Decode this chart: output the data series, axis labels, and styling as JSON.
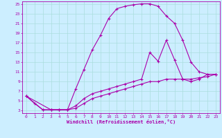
{
  "xlabel": "Windchill (Refroidissement éolien,°C)",
  "bg_color": "#cceeff",
  "line_color": "#aa00aa",
  "grid_color": "#aadddd",
  "xlim": [
    -0.5,
    23.5
  ],
  "ylim": [
    2.5,
    25.5
  ],
  "xticks": [
    0,
    1,
    2,
    3,
    4,
    5,
    6,
    7,
    8,
    9,
    10,
    11,
    12,
    13,
    14,
    15,
    16,
    17,
    18,
    19,
    20,
    21,
    22,
    23
  ],
  "yticks": [
    3,
    5,
    7,
    9,
    11,
    13,
    15,
    17,
    19,
    21,
    23,
    25
  ],
  "curve1_x": [
    0,
    1,
    2,
    3,
    4,
    5,
    6,
    7,
    8,
    9,
    10,
    11,
    12,
    13,
    14,
    15,
    16,
    17,
    18,
    19,
    20,
    21,
    22,
    23
  ],
  "curve1_y": [
    6,
    4.5,
    3.2,
    3.2,
    3.2,
    3.2,
    7.5,
    11.5,
    15.5,
    18.5,
    22,
    24,
    24.5,
    24.8,
    25,
    25,
    24.5,
    22.5,
    21,
    17.5,
    13,
    11,
    10.5,
    10.5
  ],
  "curve2_x": [
    0,
    2,
    3,
    4,
    5,
    6,
    7,
    8,
    9,
    10,
    11,
    12,
    13,
    14,
    15,
    16,
    17,
    18,
    19,
    20,
    21,
    22,
    23
  ],
  "curve2_y": [
    6,
    3.2,
    3.2,
    3.2,
    3.2,
    4.0,
    5.5,
    6.5,
    7.0,
    7.5,
    8.0,
    8.5,
    9.0,
    9.5,
    15.0,
    13.2,
    17.5,
    13.5,
    9.5,
    9.0,
    9.5,
    10.5,
    10.5
  ],
  "curve3_x": [
    0,
    3,
    4,
    5,
    6,
    7,
    8,
    9,
    10,
    11,
    12,
    13,
    14,
    15,
    16,
    17,
    18,
    19,
    20,
    21,
    22,
    23
  ],
  "curve3_y": [
    6,
    3.2,
    3.2,
    3.2,
    3.5,
    4.5,
    5.5,
    6.0,
    6.5,
    7.0,
    7.5,
    8.0,
    8.5,
    9.0,
    9.0,
    9.5,
    9.5,
    9.5,
    9.5,
    9.8,
    10.0,
    10.5
  ]
}
